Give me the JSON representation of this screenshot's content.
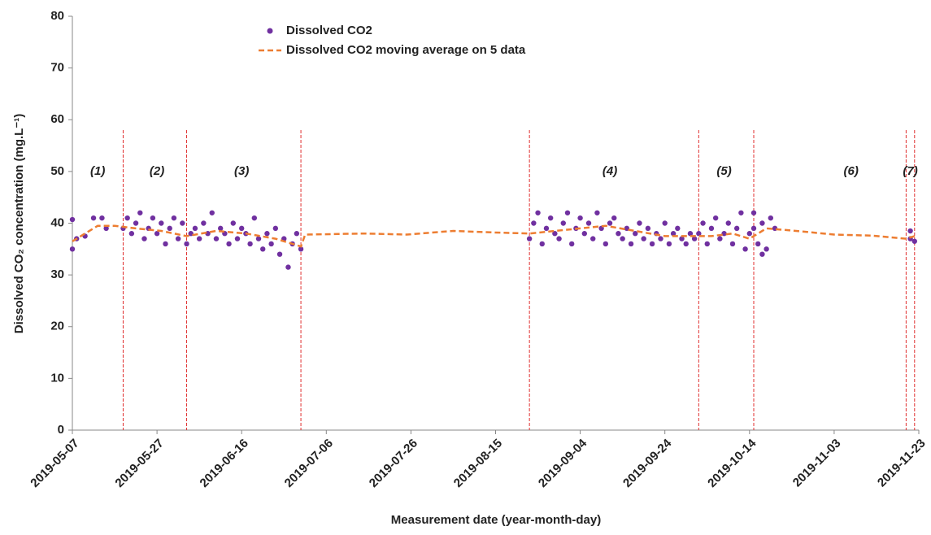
{
  "chart_data": {
    "type": "scatter",
    "x_label": "Measurement date (year-month-day)",
    "y_label": "Dissolved CO₂ concentration (mg.L⁻¹)",
    "xlim": [
      "2019-05-07",
      "2019-11-23"
    ],
    "xticks": [
      "2019-05-07",
      "2019-05-27",
      "2019-06-16",
      "2019-07-06",
      "2019-07-26",
      "2019-08-15",
      "2019-09-04",
      "2019-09-24",
      "2019-10-14",
      "2019-11-03",
      "2019-11-23"
    ],
    "ylim": [
      0,
      80
    ],
    "yticks": [
      0,
      10,
      20,
      30,
      40,
      50,
      60,
      70,
      80
    ],
    "grid": false,
    "legend": "top",
    "phase_boundaries": {
      "color": "#e03030",
      "x": [
        "2019-05-19",
        "2019-06-03",
        "2019-06-30",
        "2019-08-23",
        "2019-10-02",
        "2019-10-15",
        "2019-11-20",
        "2019-11-22"
      ]
    },
    "annotations": [
      {
        "text": "(1)",
        "x": "2019-05-13",
        "y": 50
      },
      {
        "text": "(2)",
        "x": "2019-05-27",
        "y": 50
      },
      {
        "text": "(3)",
        "x": "2019-06-16",
        "y": 50
      },
      {
        "text": "(4)",
        "x": "2019-09-11",
        "y": 50
      },
      {
        "text": "(5)",
        "x": "2019-10-08",
        "y": 50
      },
      {
        "text": "(6)",
        "x": "2019-11-07",
        "y": 50
      },
      {
        "text": "(7)",
        "x": "2019-11-21",
        "y": 50
      }
    ],
    "series": [
      {
        "name": "Dissolved CO2",
        "type": "scatter",
        "color": "#7030a0",
        "x": [
          "2019-05-07",
          "2019-05-07",
          "2019-05-08",
          "2019-05-10",
          "2019-05-12",
          "2019-05-14",
          "2019-05-15",
          "2019-05-19",
          "2019-05-20",
          "2019-05-21",
          "2019-05-22",
          "2019-05-23",
          "2019-05-24",
          "2019-05-25",
          "2019-05-26",
          "2019-05-27",
          "2019-05-28",
          "2019-05-29",
          "2019-05-30",
          "2019-05-31",
          "2019-06-01",
          "2019-06-02",
          "2019-06-03",
          "2019-06-04",
          "2019-06-05",
          "2019-06-06",
          "2019-06-07",
          "2019-06-08",
          "2019-06-09",
          "2019-06-10",
          "2019-06-11",
          "2019-06-12",
          "2019-06-13",
          "2019-06-14",
          "2019-06-15",
          "2019-06-16",
          "2019-06-17",
          "2019-06-18",
          "2019-06-19",
          "2019-06-20",
          "2019-06-21",
          "2019-06-22",
          "2019-06-23",
          "2019-06-24",
          "2019-06-25",
          "2019-06-26",
          "2019-06-27",
          "2019-06-28",
          "2019-06-29",
          "2019-06-30",
          "2019-08-23",
          "2019-08-24",
          "2019-08-25",
          "2019-08-26",
          "2019-08-27",
          "2019-08-28",
          "2019-08-29",
          "2019-08-30",
          "2019-08-31",
          "2019-09-01",
          "2019-09-02",
          "2019-09-03",
          "2019-09-04",
          "2019-09-05",
          "2019-09-06",
          "2019-09-07",
          "2019-09-08",
          "2019-09-09",
          "2019-09-10",
          "2019-09-11",
          "2019-09-12",
          "2019-09-13",
          "2019-09-14",
          "2019-09-15",
          "2019-09-16",
          "2019-09-17",
          "2019-09-18",
          "2019-09-19",
          "2019-09-20",
          "2019-09-21",
          "2019-09-22",
          "2019-09-23",
          "2019-09-24",
          "2019-09-25",
          "2019-09-26",
          "2019-09-27",
          "2019-09-28",
          "2019-09-29",
          "2019-09-30",
          "2019-10-01",
          "2019-10-02",
          "2019-10-03",
          "2019-10-04",
          "2019-10-05",
          "2019-10-06",
          "2019-10-07",
          "2019-10-08",
          "2019-10-09",
          "2019-10-10",
          "2019-10-11",
          "2019-10-12",
          "2019-10-13",
          "2019-10-14",
          "2019-10-15",
          "2019-10-15",
          "2019-10-16",
          "2019-10-17",
          "2019-10-17",
          "2019-10-18",
          "2019-10-19",
          "2019-10-20",
          "2019-11-21",
          "2019-11-21",
          "2019-11-22"
        ],
        "values": [
          40.7,
          35,
          37,
          37.5,
          41,
          41,
          39,
          39,
          41,
          38,
          40,
          42,
          37,
          39,
          41,
          38,
          40,
          36,
          39,
          41,
          37,
          40,
          36,
          38,
          39,
          37,
          40,
          38,
          42,
          37,
          39,
          38,
          36,
          40,
          37,
          39,
          38,
          36,
          41,
          37,
          35,
          38,
          36,
          39,
          34,
          37,
          31.5,
          36,
          38,
          35,
          37,
          40,
          42,
          36,
          39,
          41,
          38,
          37,
          40,
          42,
          36,
          39,
          41,
          38,
          40,
          37,
          42,
          39,
          36,
          40,
          41,
          38,
          37,
          39,
          36,
          38,
          40,
          37,
          39,
          36,
          38,
          37,
          40,
          36,
          38,
          39,
          37,
          36,
          38,
          37,
          38,
          40,
          36,
          39,
          41,
          37,
          38,
          40,
          36,
          39,
          42,
          35,
          38,
          39,
          42,
          36,
          34,
          40,
          35,
          41,
          39,
          37,
          38.5,
          36.5
        ]
      },
      {
        "name": "Dissolved CO2 moving average on 5 data",
        "type": "line",
        "color": "#ed7d31",
        "x": [
          "2019-05-07",
          "2019-05-10",
          "2019-05-13",
          "2019-05-17",
          "2019-05-22",
          "2019-05-28",
          "2019-06-03",
          "2019-06-10",
          "2019-06-17",
          "2019-06-24",
          "2019-06-30",
          "2019-07-01",
          "2019-07-15",
          "2019-07-25",
          "2019-08-05",
          "2019-08-15",
          "2019-08-23",
          "2019-09-04",
          "2019-09-10",
          "2019-09-24",
          "2019-10-05",
          "2019-10-10",
          "2019-10-14",
          "2019-10-18",
          "2019-10-25",
          "2019-11-03",
          "2019-11-12",
          "2019-11-20",
          "2019-11-22"
        ],
        "values": [
          36.5,
          38,
          39.5,
          39.5,
          39,
          38.5,
          37.5,
          38.5,
          38,
          37,
          35.5,
          37.8,
          38,
          37.8,
          38.5,
          38.2,
          38,
          39,
          39.5,
          37.5,
          37.5,
          38,
          37,
          39,
          38.5,
          37.8,
          37.6,
          37,
          37.5
        ]
      }
    ]
  }
}
